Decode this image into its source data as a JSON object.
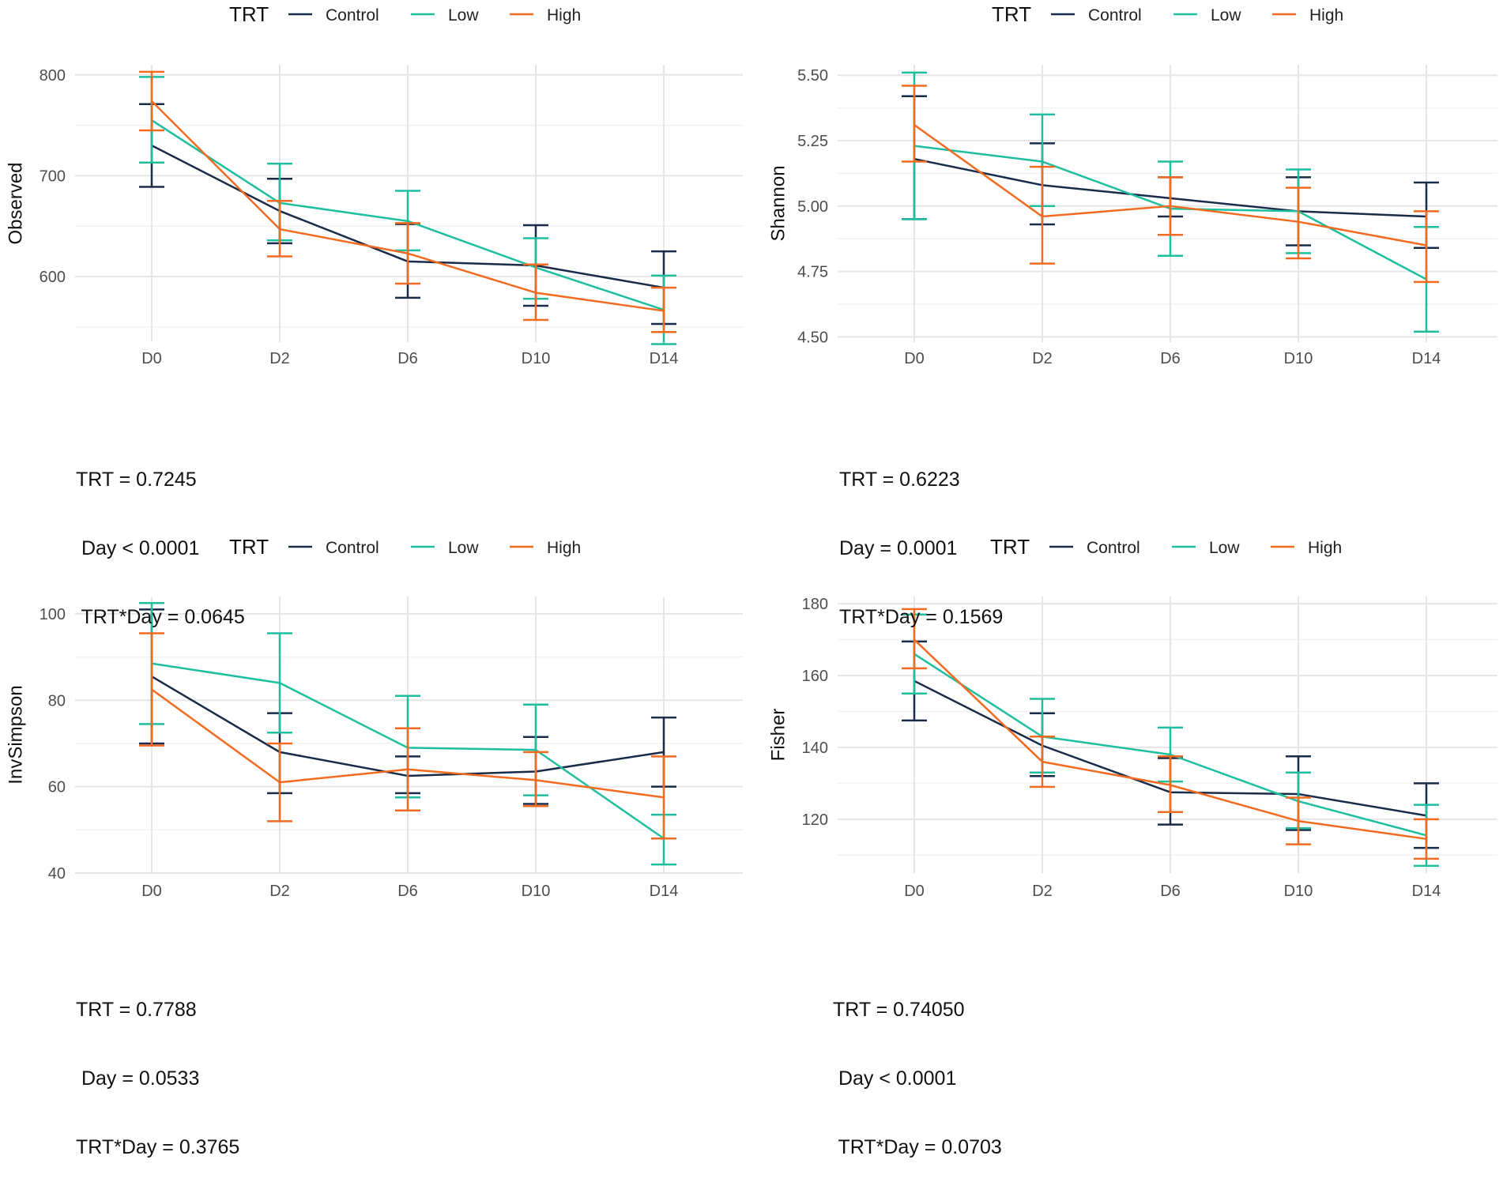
{
  "chart_data": [
    {
      "type": "line",
      "legend_title": "TRT",
      "legend_placement": "top",
      "ylabel": "Observed",
      "xlabel": "",
      "categories": [
        "D0",
        "D2",
        "D6",
        "D10",
        "D14"
      ],
      "ylim": [
        535,
        810
      ],
      "yticks": [
        600,
        700,
        800
      ],
      "grid": true,
      "series": [
        {
          "name": "Control",
          "color": "#1a2b4a",
          "values": [
            730,
            665,
            615,
            611,
            589
          ],
          "lower": [
            689,
            633,
            579,
            571,
            553
          ],
          "upper": [
            771,
            697,
            652,
            651,
            625
          ]
        },
        {
          "name": "Low",
          "color": "#1ebf9e",
          "values": [
            755,
            673,
            655,
            609,
            567
          ],
          "lower": [
            713,
            636,
            626,
            578,
            533
          ],
          "upper": [
            798,
            712,
            685,
            638,
            601
          ]
        },
        {
          "name": "High",
          "color": "#f26b21",
          "values": [
            774,
            647,
            623,
            584,
            566
          ],
          "lower": [
            745,
            620,
            593,
            557,
            545
          ],
          "upper": [
            803,
            675,
            653,
            612,
            589
          ]
        }
      ],
      "stats": [
        "TRT = 0.7245",
        " Day < 0.0001",
        " TRT*Day = 0.0645"
      ]
    },
    {
      "type": "line",
      "legend_title": "TRT",
      "legend_placement": "top",
      "ylabel": "Shannon",
      "xlabel": "",
      "categories": [
        "D0",
        "D2",
        "D6",
        "D10",
        "D14"
      ],
      "ylim": [
        4.48,
        5.54
      ],
      "yticks": [
        4.5,
        4.75,
        5.0,
        5.25,
        5.5
      ],
      "ytick_labels": [
        "4.50",
        "4.75",
        "5.00",
        "5.25",
        "5.50"
      ],
      "grid": true,
      "series": [
        {
          "name": "Control",
          "color": "#1a2b4a",
          "values": [
            5.18,
            5.08,
            5.03,
            4.98,
            4.96
          ],
          "lower": [
            4.95,
            4.93,
            4.96,
            4.85,
            4.84
          ],
          "upper": [
            5.42,
            5.24,
            5.11,
            5.11,
            5.09
          ]
        },
        {
          "name": "Low",
          "color": "#1ebf9e",
          "values": [
            5.23,
            5.17,
            4.99,
            4.98,
            4.72
          ],
          "lower": [
            4.95,
            5.0,
            4.81,
            4.82,
            4.52
          ],
          "upper": [
            5.51,
            5.35,
            5.17,
            5.14,
            4.92
          ]
        },
        {
          "name": "High",
          "color": "#f26b21",
          "values": [
            5.31,
            4.96,
            5.0,
            4.94,
            4.85
          ],
          "lower": [
            5.17,
            4.78,
            4.89,
            4.8,
            4.71
          ],
          "upper": [
            5.46,
            5.15,
            5.11,
            5.07,
            4.98
          ]
        }
      ],
      "stats": [
        "TRT = 0.6223",
        "Day = 0.0001",
        "TRT*Day = 0.1569"
      ]
    },
    {
      "type": "line",
      "legend_title": "TRT",
      "legend_placement": "top",
      "ylabel": "InvSimpson",
      "xlabel": "",
      "categories": [
        "D0",
        "D2",
        "D6",
        "D10",
        "D14"
      ],
      "ylim": [
        40,
        104
      ],
      "yticks": [
        40,
        60,
        80,
        100
      ],
      "grid": true,
      "series": [
        {
          "name": "Control",
          "color": "#1a2b4a",
          "values": [
            85.5,
            68,
            62.5,
            63.5,
            68
          ],
          "lower": [
            70,
            58.5,
            58.5,
            56,
            60
          ],
          "upper": [
            101,
            77,
            67,
            71.5,
            76
          ]
        },
        {
          "name": "Low",
          "color": "#1ebf9e",
          "values": [
            88.5,
            84,
            69,
            68.5,
            48
          ],
          "lower": [
            74.5,
            72.5,
            57.5,
            58,
            42
          ],
          "upper": [
            102.5,
            95.5,
            81,
            79,
            53.5
          ]
        },
        {
          "name": "High",
          "color": "#f26b21",
          "values": [
            82.5,
            61,
            64,
            61.5,
            57.5
          ],
          "lower": [
            69.5,
            52,
            54.5,
            55.5,
            48
          ],
          "upper": [
            95.5,
            70,
            73.5,
            68,
            67
          ]
        }
      ],
      "stats": [
        "TRT = 0.7788",
        " Day = 0.0533",
        "TRT*Day = 0.3765"
      ]
    },
    {
      "type": "line",
      "legend_title": "TRT",
      "legend_placement": "top",
      "ylabel": "Fisher",
      "xlabel": "",
      "categories": [
        "D0",
        "D2",
        "D6",
        "D10",
        "D14"
      ],
      "ylim": [
        105,
        182
      ],
      "yticks": [
        120,
        140,
        160,
        180
      ],
      "grid": true,
      "series": [
        {
          "name": "Control",
          "color": "#1a2b4a",
          "values": [
            158.5,
            140.5,
            127.5,
            127,
            121
          ],
          "lower": [
            147.5,
            132,
            118.5,
            117,
            112
          ],
          "upper": [
            169.5,
            149.5,
            137,
            137.5,
            130
          ]
        },
        {
          "name": "Low",
          "color": "#1ebf9e",
          "values": [
            166,
            143,
            138,
            125,
            115.5
          ],
          "lower": [
            155,
            133,
            130.5,
            117.5,
            107
          ],
          "upper": [
            177,
            153.5,
            145.5,
            133,
            124
          ]
        },
        {
          "name": "High",
          "color": "#f26b21",
          "values": [
            170,
            136,
            129.5,
            119.5,
            114.5
          ],
          "lower": [
            162,
            129,
            122,
            113,
            109
          ],
          "upper": [
            178.5,
            143,
            137.5,
            126,
            120
          ]
        }
      ],
      "stats": [
        "TRT = 0.74050",
        " Day < 0.0001",
        " TRT*Day = 0.0703"
      ]
    }
  ]
}
